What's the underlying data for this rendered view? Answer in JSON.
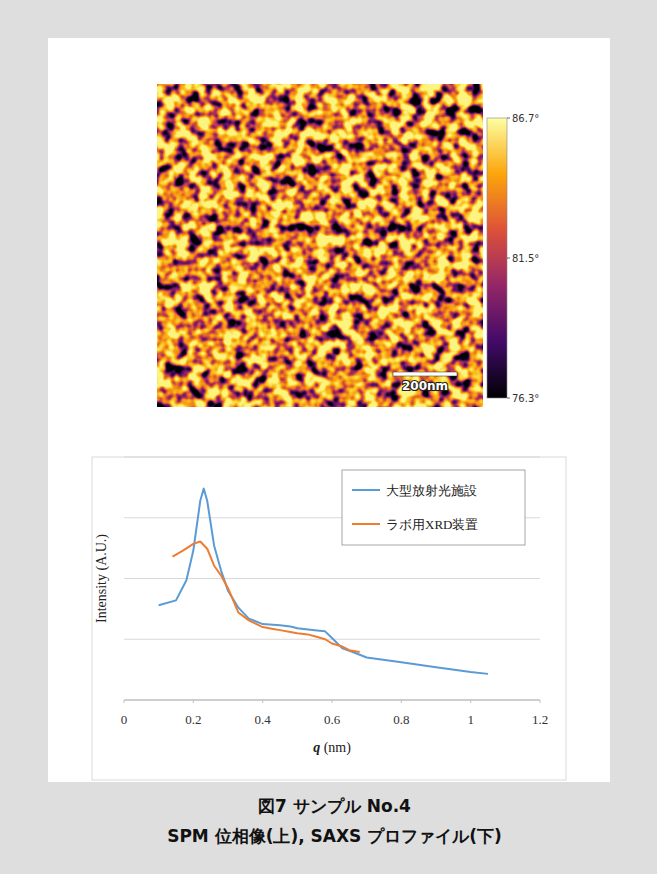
{
  "image": {
    "colorbar": {
      "range": [
        76.3,
        86.7
      ],
      "ticks": [
        {
          "value": 86.7,
          "label": "86.7°"
        },
        {
          "value": 81.5,
          "label": "81.5°"
        },
        {
          "value": 76.3,
          "label": "76.3°"
        }
      ]
    },
    "scale_bar": "200nm"
  },
  "chart_data": {
    "type": "line",
    "x_label": "q (nm)",
    "y_label": "Intensity (A.U.)",
    "xlim": [
      0,
      1.2
    ],
    "xticks": [
      0,
      0.2,
      0.4,
      0.6,
      0.8,
      1,
      1.2
    ],
    "ylim": [
      0,
      4
    ],
    "yticks": [
      0,
      1,
      2,
      3,
      4
    ],
    "grid": true,
    "tick_labels": "x",
    "legend": "top-right",
    "series": [
      {
        "name": "大型放射光施設",
        "color": "#5b9bd5",
        "x": [
          0.1,
          0.15,
          0.18,
          0.2,
          0.22,
          0.23,
          0.24,
          0.26,
          0.28,
          0.3,
          0.33,
          0.36,
          0.4,
          0.45,
          0.48,
          0.5,
          0.55,
          0.58,
          0.6,
          0.63,
          0.66,
          0.7,
          0.8,
          0.9,
          1.0,
          1.05
        ],
        "values": [
          1.56,
          1.64,
          1.97,
          2.46,
          3.28,
          3.48,
          3.28,
          2.54,
          2.13,
          1.8,
          1.52,
          1.34,
          1.25,
          1.23,
          1.21,
          1.18,
          1.15,
          1.13,
          1.02,
          0.85,
          0.79,
          0.7,
          0.62,
          0.54,
          0.46,
          0.43
        ]
      },
      {
        "name": "ラボ用XRD装置",
        "color": "#ed7d31",
        "x": [
          0.14,
          0.17,
          0.2,
          0.22,
          0.24,
          0.26,
          0.28,
          0.3,
          0.33,
          0.36,
          0.4,
          0.43,
          0.45,
          0.48,
          0.5,
          0.53,
          0.55,
          0.58,
          0.6,
          0.63,
          0.65,
          0.68
        ],
        "values": [
          2.36,
          2.46,
          2.57,
          2.61,
          2.49,
          2.21,
          2.05,
          1.84,
          1.44,
          1.31,
          1.2,
          1.17,
          1.15,
          1.12,
          1.1,
          1.08,
          1.05,
          1.0,
          0.93,
          0.88,
          0.82,
          0.79
        ]
      }
    ]
  },
  "caption": {
    "title": "図7 サンプル No.4",
    "subtitle": "SPM 位相像(上), SAXS プロファイル(下)"
  }
}
